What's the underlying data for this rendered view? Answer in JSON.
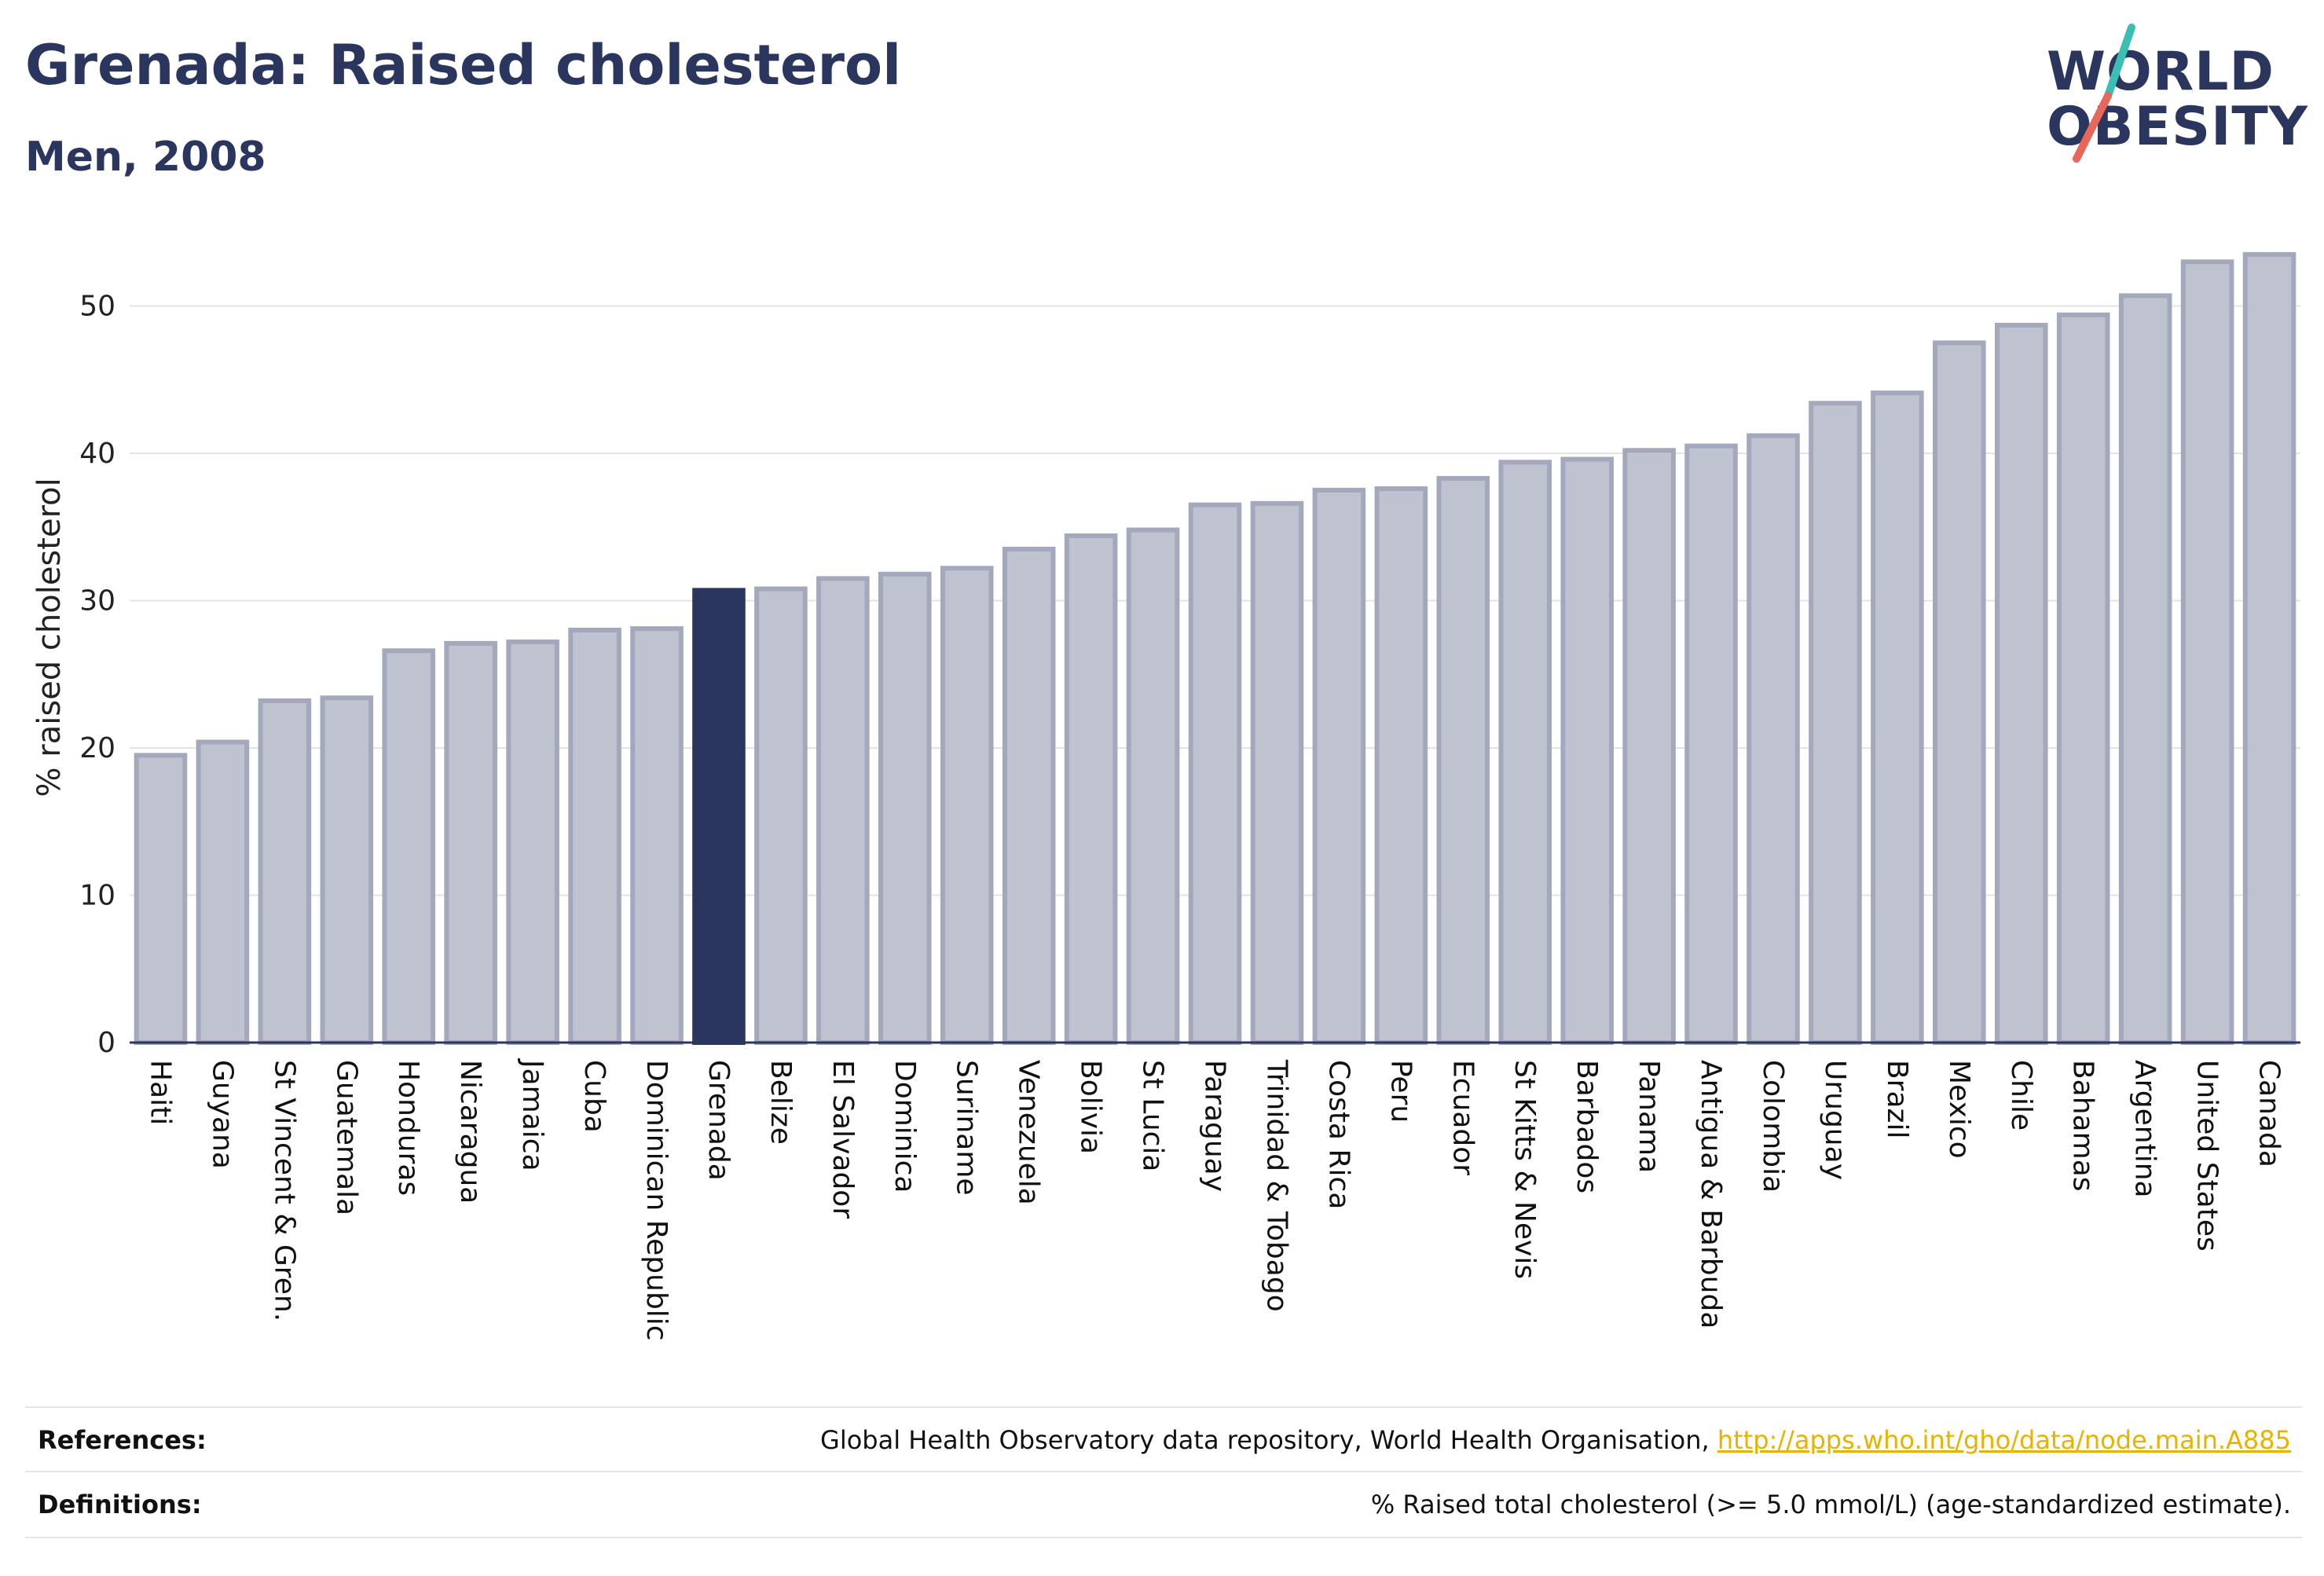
{
  "header": {
    "title": "Grenada: Raised cholesterol",
    "subtitle": "Men, 2008"
  },
  "logo": {
    "line1": "WORLD",
    "line2": "OBESITY",
    "accent_teal": "#3bbfb5",
    "accent_coral": "#e8665a"
  },
  "chart_data": {
    "type": "bar",
    "ylabel": "% raised cholesterol",
    "ylim": [
      0,
      55
    ],
    "yticks": [
      0,
      10,
      20,
      30,
      40,
      50
    ],
    "grid": true,
    "highlight": "Grenada",
    "bar_color": "#bfc3d0",
    "bar_edge_color": "#a3a8bd",
    "highlight_color": "#2b365e",
    "categories": [
      "Haiti",
      "Guyana",
      "St Vincent & Gren.",
      "Guatemala",
      "Honduras",
      "Nicaragua",
      "Jamaica",
      "Cuba",
      "Dominican Republic",
      "Grenada",
      "Belize",
      "El Salvador",
      "Dominica",
      "Suriname",
      "Venezuela",
      "Bolivia",
      "St Lucia",
      "Paraguay",
      "Trinidad & Tobago",
      "Costa Rica",
      "Peru",
      "Ecuador",
      "St Kitts & Nevis",
      "Barbados",
      "Panama",
      "Antigua & Barbuda",
      "Colombia",
      "Uruguay",
      "Brazil",
      "Mexico",
      "Chile",
      "Bahamas",
      "Argentina",
      "United States",
      "Canada"
    ],
    "values": [
      19.5,
      20.4,
      23.2,
      23.4,
      26.6,
      27.1,
      27.2,
      28.0,
      28.1,
      30.7,
      30.8,
      31.5,
      31.8,
      32.2,
      33.5,
      34.4,
      34.8,
      36.5,
      36.6,
      37.5,
      37.6,
      38.3,
      39.4,
      39.6,
      40.2,
      40.5,
      41.2,
      43.4,
      44.1,
      47.5,
      48.7,
      49.4,
      50.7,
      53.0,
      53.5
    ]
  },
  "footer": {
    "references_label": "References:",
    "references_text": "Global Health Observatory data repository, World Health Organisation, ",
    "references_link": "http://apps.who.int/gho/data/node.main.A885",
    "definitions_label": "Definitions:",
    "definitions_text": "% Raised total cholesterol (>= 5.0 mmol/L) (age-standardized estimate)."
  }
}
